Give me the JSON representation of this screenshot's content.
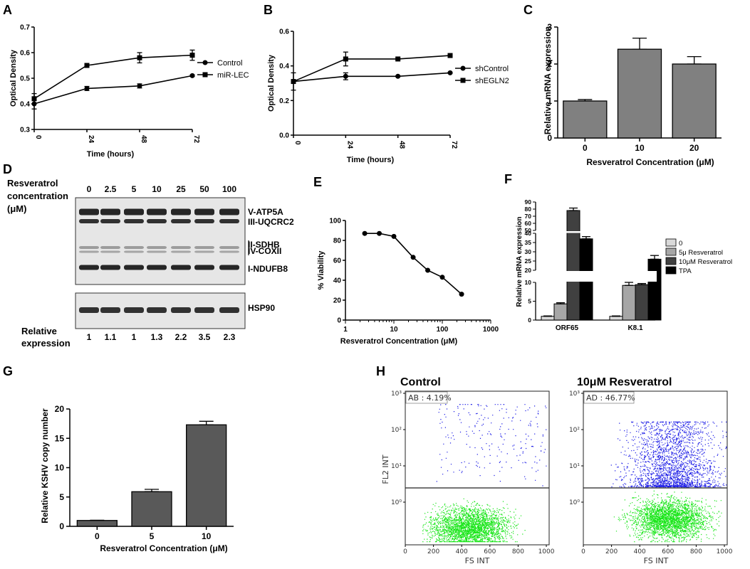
{
  "panel_labels": {
    "A": "A",
    "B": "B",
    "C": "C",
    "D": "D",
    "E": "E",
    "F": "F",
    "G": "G",
    "H": "H"
  },
  "chart_data": [
    {
      "panel": "A",
      "type": "line",
      "x": [
        0,
        24,
        48,
        72
      ],
      "series": [
        {
          "name": "Control",
          "marker": "circle",
          "values": [
            0.4,
            0.46,
            0.47,
            0.51
          ],
          "errors": [
            0.02,
            0.008,
            0.008,
            0.003
          ]
        },
        {
          "name": "miR-LEC",
          "marker": "square",
          "values": [
            0.42,
            0.55,
            0.58,
            0.59
          ],
          "errors": [
            0.02,
            0.004,
            0.02,
            0.02
          ]
        }
      ],
      "xlabel": "Time (hours)",
      "ylabel": "Optical Density",
      "xticks": [
        "0",
        "24",
        "48",
        "72"
      ],
      "yticks": [
        "0.3",
        "0.4",
        "0.5",
        "0.6",
        "0.7"
      ],
      "ylim": [
        0.3,
        0.7
      ],
      "legend": "right"
    },
    {
      "panel": "B",
      "type": "line",
      "x": [
        0,
        24,
        48,
        72
      ],
      "series": [
        {
          "name": "shControl",
          "marker": "circle",
          "values": [
            0.31,
            0.34,
            0.34,
            0.36
          ],
          "errors": [
            0.05,
            0.02,
            0.003,
            0.003
          ]
        },
        {
          "name": "shEGLN2",
          "marker": "square",
          "values": [
            0.31,
            0.44,
            0.44,
            0.46
          ],
          "errors": [
            0.01,
            0.04,
            0.003,
            0.003
          ]
        }
      ],
      "xlabel": "Time (hours)",
      "ylabel": "Optical Density",
      "xticks": [
        "0",
        "24",
        "48",
        "72"
      ],
      "yticks": [
        "0.0",
        "0.2",
        "0.4",
        "0.6"
      ],
      "ylim": [
        0,
        0.6
      ],
      "legend": "right"
    },
    {
      "panel": "C",
      "type": "bar",
      "categories": [
        "0",
        "10",
        "20"
      ],
      "values": [
        1.0,
        2.4,
        2.0
      ],
      "errors": [
        0.04,
        0.3,
        0.2
      ],
      "xlabel": "Resveratrol Concentration (μM)",
      "ylabel": "Relative mRNA expression",
      "yticks": [
        "0",
        "1",
        "2",
        "3"
      ],
      "ylim": [
        0,
        3
      ],
      "color": "#808080"
    },
    {
      "panel": "E",
      "type": "line",
      "xscale": "log",
      "x": [
        2.5,
        5,
        10,
        25,
        50,
        100,
        250
      ],
      "values": [
        87,
        87,
        84,
        63,
        50,
        43,
        26
      ],
      "xlabel": "Resveratrol Concentration (μM)",
      "ylabel": "% Viability",
      "xticks": [
        "1",
        "10",
        "100",
        "1000"
      ],
      "yticks": [
        "0",
        "20",
        "40",
        "60",
        "80",
        "100"
      ],
      "ylim": [
        0,
        100
      ]
    },
    {
      "panel": "F",
      "type": "bar",
      "yaxis": "broken",
      "categories": [
        "ORF65",
        "K8.1"
      ],
      "series": [
        {
          "name": "0",
          "values": [
            1,
            1
          ],
          "color": "#d9d9d9"
        },
        {
          "name": "5μ Resveratrol",
          "values": [
            4.3,
            9.2
          ],
          "color": "#a6a6a6"
        },
        {
          "name": "10μM Resveratrol",
          "values": [
            78,
            9.4
          ],
          "color": "#404040"
        },
        {
          "name": "TPA",
          "values": [
            37,
            26
          ],
          "color": "#000000"
        }
      ],
      "errors": [
        [
          0.1,
          0.1
        ],
        [
          0.3,
          0.8
        ],
        [
          3.5,
          0.3
        ],
        [
          1.2,
          2
        ]
      ],
      "ylabel": "Relative mRNA expression",
      "yticks_low": [
        "0",
        "5",
        "10"
      ],
      "yticks_mid": [
        "20",
        "25",
        "30",
        "35",
        "40"
      ],
      "yticks_high": [
        "50",
        "60",
        "70",
        "80",
        "90"
      ],
      "legend": "right"
    },
    {
      "panel": "G",
      "type": "bar",
      "categories": [
        "0",
        "5",
        "10"
      ],
      "values": [
        1.0,
        5.9,
        17.3
      ],
      "errors": [
        0.05,
        0.4,
        0.6
      ],
      "xlabel": "Resveratrol Concentration (μM)",
      "ylabel": "Relative KSHV copy number",
      "yticks": [
        "0",
        "5",
        "10",
        "15",
        "20"
      ],
      "ylim": [
        0,
        20
      ],
      "color": "#595959"
    },
    {
      "panel": "H",
      "type": "scatter",
      "plots": [
        {
          "title": "Control",
          "gate_label": "AB : 4.19%"
        },
        {
          "title": "10μM Resveratrol",
          "gate_label": "AD : 46.77%"
        }
      ],
      "xlabel": "FS INT",
      "ylabel": "FL2 INT",
      "xticks": [
        "0",
        "200",
        "400",
        "600",
        "800",
        "1000"
      ],
      "yticks": [
        "10⁰",
        "10¹",
        "10²",
        "10³"
      ],
      "colors": {
        "above_gate": "#1a1ae6",
        "below_gate": "#19e619"
      }
    }
  ],
  "western_blot": {
    "header_line1": "Resveratrol",
    "header_line2": "concentration",
    "header_line3": "(μM)",
    "concentrations": [
      "0",
      "2.5",
      "5",
      "10",
      "25",
      "50",
      "100"
    ],
    "bands": [
      "V-ATP5A",
      "III-UQCRC2",
      "II-SDHB",
      "IV-COXII",
      "I-NDUFB8"
    ],
    "loading_control": "HSP90",
    "relative_line1": "Relative",
    "relative_line2": "expression",
    "relative_values": [
      "1",
      "1.1",
      "1",
      "1.3",
      "2.2",
      "3.5",
      "2.3"
    ]
  }
}
